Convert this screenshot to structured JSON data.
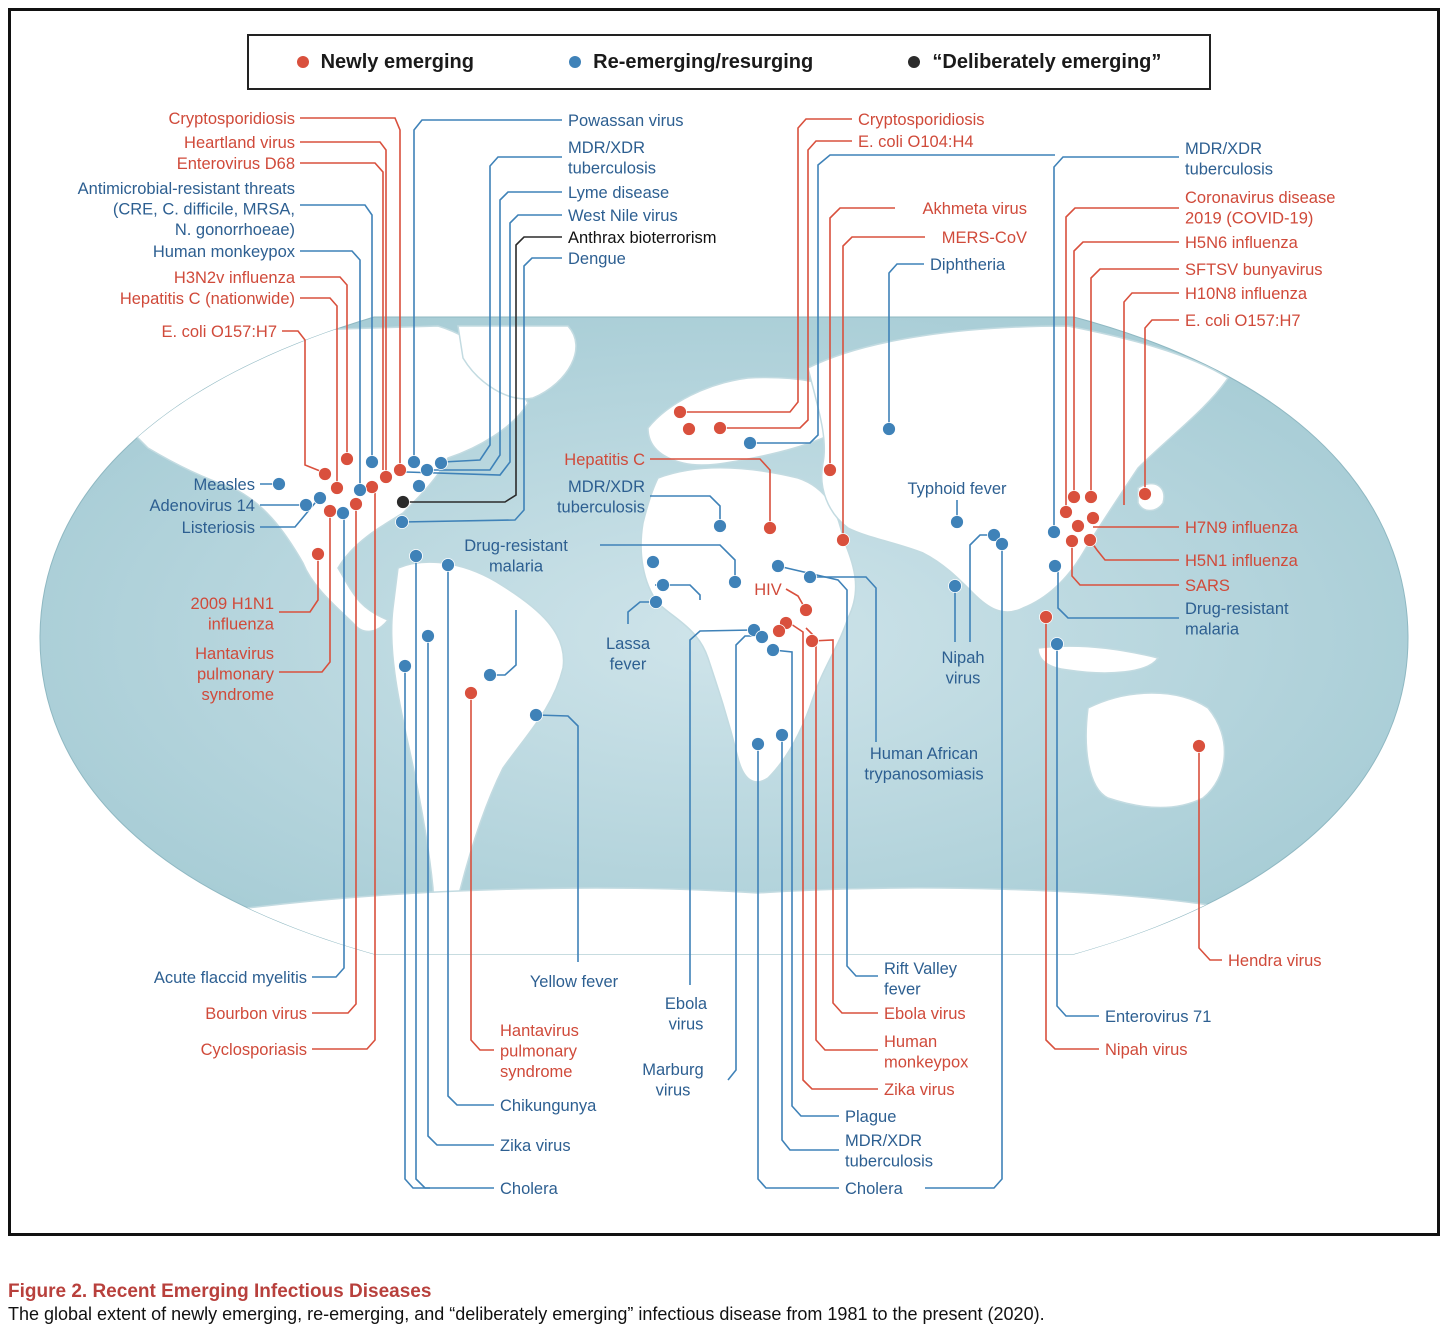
{
  "colors": {
    "newly": "#d9503d",
    "reemerging": "#3f82b8",
    "deliberate": "#2b2b2b",
    "newly_text": "#d04a3a",
    "reemerging_text": "#2d5f91",
    "deliberate_text": "#111111",
    "ocean": "#b9d7df",
    "land": "#ffffff"
  },
  "legend": {
    "newly": "Newly emerging",
    "reemerging": "Re-emerging/resurging",
    "deliberate": "“Deliberately emerging”"
  },
  "caption": {
    "title": "Figure 2.  Recent Emerging Infectious Diseases",
    "text": "The global extent of newly emerging, re-emerging, and “deliberately emerging” infectious disease from 1981 to the present (2020)."
  },
  "labels": {
    "na_crypto": "Cryptosporidiosis",
    "na_heartland": "Heartland virus",
    "na_entero_d68": "Enterovirus D68",
    "na_amr_1": "Antimicrobial-resistant threats",
    "na_amr_2": "(CRE, C. difficile, MRSA,",
    "na_amr_3": "N. gonorrhoeae)",
    "na_monkeypox": "Human monkeypox",
    "na_h3n2v": "H3N2v influenza",
    "na_hepc": "Hepatitis C (nationwide)",
    "na_ecoli": "E. coli O157:H7",
    "na_measles": "Measles",
    "na_adeno": "Adenovirus 14",
    "na_listeriosis": "Listeriosis",
    "na_h1n1_1": "2009 H1N1",
    "na_h1n1_2": "influenza",
    "na_hanta_1": "Hantavirus",
    "na_hanta_2": "pulmonary",
    "na_hanta_3": "syndrome",
    "na_powassan": "Powassan virus",
    "na_mdr_1": "MDR/XDR",
    "na_mdr_2": "tuberculosis",
    "na_lyme": "Lyme disease",
    "na_westnile": "West Nile virus",
    "na_anthrax": "Anthrax bioterrorism",
    "na_dengue": "Dengue",
    "na_afm": "Acute flaccid myelitis",
    "na_bourbon": "Bourbon virus",
    "na_cyclo": "Cyclosporiasis",
    "sa_hanta_1": "Hantavirus",
    "sa_hanta_2": "pulmonary",
    "sa_hanta_3": "syndrome",
    "sa_chik": "Chikungunya",
    "sa_zika": "Zika virus",
    "sa_cholera": "Cholera",
    "sa_drug_1": "Drug-resistant",
    "sa_drug_2": "malaria",
    "sa_yellow": "Yellow fever",
    "eu_crypto": "Cryptosporidiosis",
    "eu_ecoli": "E. coli O104:H4",
    "eu_akhmeta": "Akhmeta virus",
    "eu_mers": "MERS-CoV",
    "eu_diph": "Diphtheria",
    "eu_hepc": "Hepatitis C",
    "eu_mdr_1": "MDR/XDR",
    "eu_mdr_2": "tuberculosis",
    "af_lassa_1": "Lassa",
    "af_lassa_2": "fever",
    "af_hiv": "HIV",
    "af_ebola_1": "Ebola",
    "af_ebola_2": "virus",
    "af_marburg_1": "Marburg",
    "af_marburg_2": "virus",
    "af_hat_1": "Human African",
    "af_hat_2": "trypanosomiasis",
    "af_rvf_1": "Rift Valley",
    "af_rvf_2": "fever",
    "af_ebolavirus": "Ebola virus",
    "af_monkeypox_1": "Human",
    "af_monkeypox_2": "monkeypox",
    "af_zika": "Zika virus",
    "af_plague": "Plague",
    "af_mdr_1": "MDR/XDR",
    "af_mdr_2": "tuberculosis",
    "af_cholera": "Cholera",
    "as_typhoid": "Typhoid fever",
    "as_nipah_1": "Nipah",
    "as_nipah_2": "virus",
    "as_mdr_1": "MDR/XDR",
    "as_mdr_2": "tuberculosis",
    "as_covid_1": "Coronavirus disease",
    "as_covid_2": "2019 (COVID-19)",
    "as_h5n6": "H5N6 influenza",
    "as_sftsv": "SFTSV bunyavirus",
    "as_h10n8": "H10N8 influenza",
    "as_ecoli": "E. coli O157:H7",
    "as_h7n9": "H7N9 influenza",
    "as_h5n1": "H5N1 influenza",
    "as_sars": "SARS",
    "as_drug_1": "Drug-resistant",
    "as_drug_2": "malaria",
    "as_hendra": "Hendra virus",
    "as_ev71": "Enterovirus 71",
    "as_nipah": "Nipah virus"
  }
}
